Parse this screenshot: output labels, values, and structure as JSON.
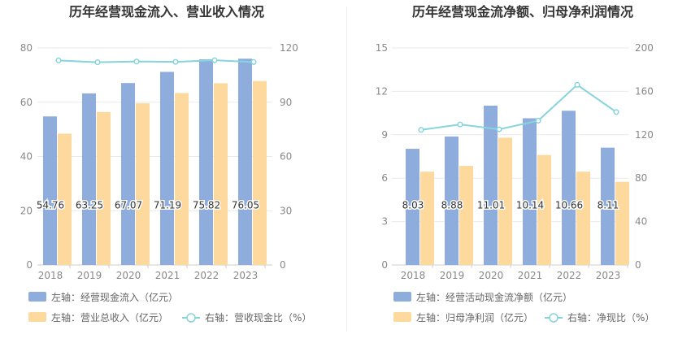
{
  "chart_data": [
    {
      "type": "bar",
      "title": "历年经营现金流入、营业收入情况",
      "categories": [
        "2018",
        "2019",
        "2020",
        "2021",
        "2022",
        "2023"
      ],
      "left_axis": {
        "ticks": [
          "0",
          "20",
          "40",
          "60",
          "80"
        ],
        "ylim": [
          0,
          80
        ]
      },
      "right_axis": {
        "ticks": [
          "0",
          "30",
          "60",
          "90",
          "120"
        ],
        "ylim": [
          0,
          120
        ]
      },
      "series": [
        {
          "name": "左轴：经营现金流入（亿元）",
          "kind": "bar",
          "axis": "left",
          "color": "#8eaddc",
          "values": [
            54.76,
            63.25,
            67.07,
            71.19,
            75.82,
            76.05
          ],
          "labels": [
            "54.76",
            "63.25",
            "67.07",
            "71.19",
            "75.82",
            "76.05"
          ]
        },
        {
          "name": "左轴：营业总收入（亿元）",
          "kind": "bar",
          "axis": "left",
          "color": "#fdd99e",
          "values": [
            48.4,
            56.4,
            59.6,
            63.4,
            67.0,
            67.8
          ]
        },
        {
          "name": "右轴：营收现金比（%）",
          "kind": "line",
          "axis": "right",
          "color": "#86d4dc",
          "values": [
            113.1,
            112.1,
            112.5,
            112.3,
            113.2,
            112.2
          ]
        }
      ],
      "grid": true,
      "legend_position": "bottom"
    },
    {
      "type": "bar",
      "title": "历年经营现金流净额、归母净利润情况",
      "categories": [
        "2018",
        "2019",
        "2020",
        "2021",
        "2022",
        "2023"
      ],
      "left_axis": {
        "ticks": [
          "0",
          "3",
          "6",
          "9",
          "12",
          "15"
        ],
        "ylim": [
          0,
          15
        ]
      },
      "right_axis": {
        "ticks": [
          "0",
          "40",
          "80",
          "120",
          "160",
          "200"
        ],
        "ylim": [
          0,
          200
        ]
      },
      "series": [
        {
          "name": "左轴：经营活动现金流净额（亿元）",
          "kind": "bar",
          "axis": "left",
          "color": "#8eaddc",
          "values": [
            8.03,
            8.88,
            11.01,
            10.14,
            10.66,
            8.11
          ],
          "labels": [
            "8.03",
            "8.88",
            "11.01",
            "10.14",
            "10.66",
            "8.11"
          ]
        },
        {
          "name": "左轴：归母净利润（亿元）",
          "kind": "bar",
          "axis": "left",
          "color": "#fdd99e",
          "values": [
            6.45,
            6.85,
            8.8,
            7.6,
            6.45,
            5.75
          ]
        },
        {
          "name": "右轴：净现比（%）",
          "kind": "line",
          "axis": "right",
          "color": "#86d4dc",
          "values": [
            124.5,
            129.5,
            125.0,
            133.0,
            166.0,
            141.0
          ]
        }
      ],
      "grid": true,
      "legend_position": "bottom"
    }
  ]
}
